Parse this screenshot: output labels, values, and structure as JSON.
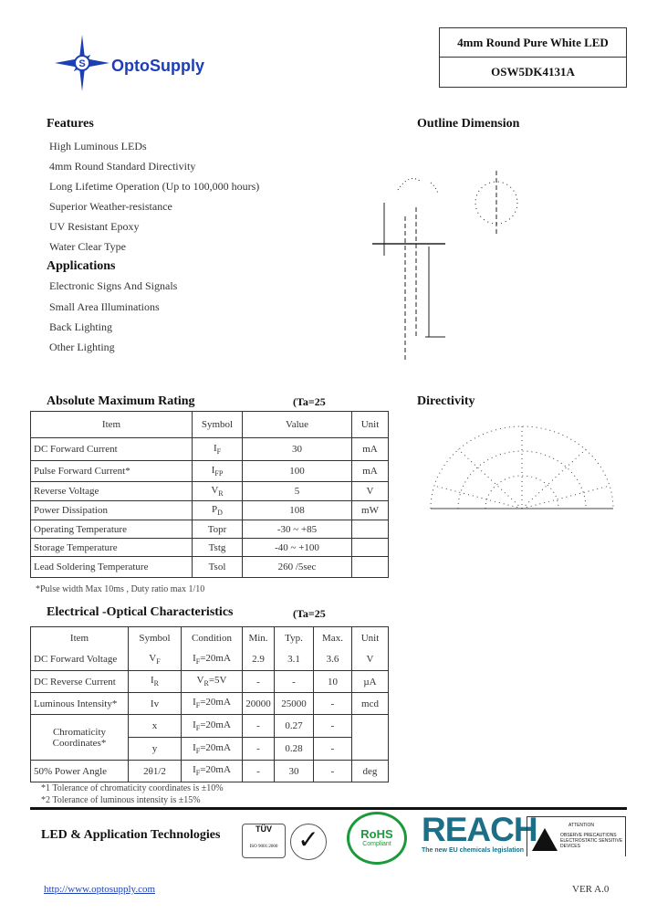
{
  "header": {
    "brand": "OptoSupply",
    "product_name": "4mm Round Pure White LED",
    "part_number": "OSW5DK4131A",
    "brand_color": "#1d3fb5"
  },
  "features": {
    "title": "Features",
    "items": [
      "High Luminous LEDs",
      "4mm Round Standard Directivity",
      "Long Lifetime Operation (Up to 100,000 hours)",
      "Superior Weather-resistance",
      "UV Resistant Epoxy",
      "Water Clear Type"
    ]
  },
  "applications": {
    "title": "Applications",
    "items": [
      "Electronic Signs And Signals",
      "Small Area Illuminations",
      "Back Lighting",
      "Other Lighting"
    ]
  },
  "outline": {
    "title": "Outline Dimension"
  },
  "directivity": {
    "title": "Directivity"
  },
  "amr": {
    "title": "Absolute Maximum Rating",
    "cond": "(Ta=25",
    "headers": [
      "Item",
      "Symbol",
      "Value",
      "Unit"
    ],
    "rows": [
      {
        "item": "DC Forward Current",
        "sym": "I",
        "sub": "F",
        "value": "30",
        "unit": "mA"
      },
      {
        "item": "Pulse Forward Current*",
        "sym": "I",
        "sub": "FP",
        "value": "100",
        "unit": "mA"
      },
      {
        "item": "Reverse Voltage",
        "sym": "V",
        "sub": "R",
        "value": "5",
        "unit": "V"
      },
      {
        "item": "Power Dissipation",
        "sym": "P",
        "sub": "D",
        "value": "108",
        "unit": "mW"
      },
      {
        "item": "Operating Temperature",
        "sym": "Topr",
        "sub": "",
        "value": "-30 ~ +85",
        "unit": ""
      },
      {
        "item": "Storage Temperature",
        "sym": "Tstg",
        "sub": "",
        "value": "-40 ~ +100",
        "unit": ""
      },
      {
        "item": "Lead Soldering Temperature",
        "sym": "Tsol",
        "sub": "",
        "value": "260 /5sec",
        "unit": ""
      }
    ],
    "note": "*Pulse width Max 10ms , Duty ratio max 1/10"
  },
  "eoc": {
    "title": "Electrical -Optical Characteristics",
    "cond": "(Ta=25",
    "headers": [
      "Item",
      "Symbol",
      "Condition",
      "Min.",
      "Typ.",
      "Max.",
      "Unit"
    ],
    "rows": [
      {
        "item": "DC Forward Voltage",
        "sym": "V",
        "sub": "F",
        "cond": "I",
        "csub": "F",
        "cval": "=20mA",
        "min": "2.9",
        "typ": "3.1",
        "max": "3.6",
        "unit": "V"
      },
      {
        "item": "DC Reverse Current",
        "sym": "I",
        "sub": "R",
        "cond": "V",
        "csub": "R",
        "cval": "=5V",
        "min": "-",
        "typ": "-",
        "max": "10",
        "unit": "µA"
      },
      {
        "item": "Luminous Intensity*",
        "sym": "Iv",
        "sub": "",
        "cond": "I",
        "csub": "F",
        "cval": "=20mA",
        "min": "20000",
        "typ": "25000",
        "max": "-",
        "unit": "mcd"
      }
    ],
    "chroma": {
      "item1": "Chromaticity",
      "item2": "Coordinates*",
      "x": {
        "sym": "x",
        "cond": "I",
        "csub": "F",
        "cval": "=20mA",
        "min": "-",
        "typ": "0.27",
        "max": "-"
      },
      "y": {
        "sym": "y",
        "cond": "I",
        "csub": "F",
        "cval": "=20mA",
        "min": "-",
        "typ": "0.28",
        "max": "-"
      }
    },
    "angle": {
      "item": "50% Power Angle",
      "sym": "2θ1/2",
      "cond": "I",
      "csub": "F",
      "cval": "=20mA",
      "min": "-",
      "typ": "30",
      "max": "-",
      "unit": "deg"
    },
    "notes": [
      "*1 Tolerance of chromaticity coordinates is ±10%",
      "*2 Tolerance of luminous intensity is ±15%"
    ]
  },
  "footer": {
    "tagline": "LED & Application Technologies",
    "url": "http://www.optosupply.com",
    "version": "VER A.0",
    "logos": {
      "tuv": "TÜV",
      "iso": "ISO 9001:2000",
      "rohs": "RoHS",
      "rohs_sub": "Compliant",
      "reach": "REACH",
      "reach_sub": "The new EU chemicals legislation",
      "esd_title": "ATTENTION",
      "esd_text": "OBSERVE PRECAUTIONS ELECTROSTATIC SENSITIVE DEVICES"
    },
    "reach_color": "#1c6f86",
    "rohs_color": "#1a9a3a"
  }
}
